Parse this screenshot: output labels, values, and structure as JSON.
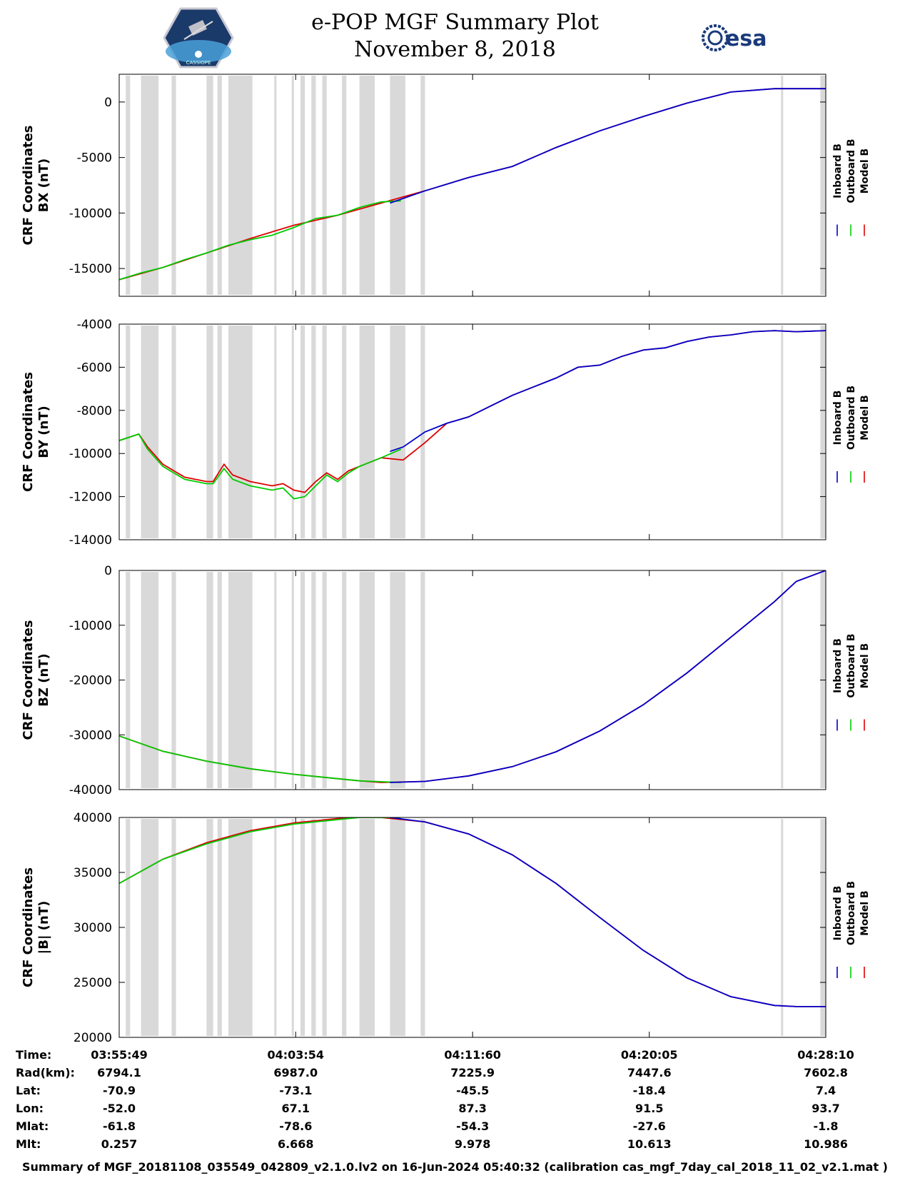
{
  "header": {
    "title_line1": "e-POP MGF Summary Plot",
    "title_line2": "November 8, 2018",
    "esa_logo_text": "esa",
    "mission_logo_text": "CASSIOPE"
  },
  "legend": {
    "items": [
      {
        "label": "Inboard B",
        "color": "#0000cc"
      },
      {
        "label": "Outboard B",
        "color": "#00cc00"
      },
      {
        "label": "Model B",
        "color": "#dd0000"
      }
    ]
  },
  "chart_data": [
    {
      "type": "line",
      "ylabel_line1": "CRF Coordinates",
      "ylabel_line2": "BX (nT)",
      "ylim": [
        -17500,
        2500
      ],
      "yticks": [
        0,
        -5000,
        -10000,
        -15000
      ],
      "x_range": [
        0,
        32.35
      ],
      "series": [
        {
          "name": "Model B",
          "x": [
            0,
            2,
            4,
            6,
            8,
            10,
            12,
            14,
            16,
            18,
            20,
            22,
            24,
            26,
            28,
            30,
            32.35
          ],
          "y": [
            -16000,
            -14900,
            -13600,
            -12300,
            -11100,
            -10200,
            -9100,
            -8000,
            -6800,
            -5800,
            -4100,
            -2600,
            -1300,
            -100,
            900,
            1200,
            1200
          ]
        },
        {
          "name": "Outboard B",
          "x": [
            0,
            1,
            2,
            3,
            4,
            5,
            6,
            7,
            8,
            9,
            10,
            11,
            12,
            12.9
          ],
          "y": [
            -16000,
            -15400,
            -14900,
            -14200,
            -13600,
            -12900,
            -12400,
            -12000,
            -11300,
            -10500,
            -10200,
            -9500,
            -9000,
            -8900
          ]
        },
        {
          "name": "Inboard B",
          "x": [
            12.4,
            14,
            16,
            18,
            20,
            22,
            24,
            26,
            28,
            30,
            32.35
          ],
          "y": [
            -9100,
            -8000,
            -6800,
            -5800,
            -4100,
            -2600,
            -1300,
            -100,
            900,
            1200,
            1200
          ]
        }
      ]
    },
    {
      "type": "line",
      "ylabel_line1": "CRF Coordinates",
      "ylabel_line2": "BY (nT)",
      "ylim": [
        -14000,
        -4000
      ],
      "yticks": [
        -4000,
        -6000,
        -8000,
        -10000,
        -12000,
        -14000
      ],
      "x_range": [
        0,
        32.35
      ],
      "series": [
        {
          "name": "Model B",
          "x": [
            0,
            0.9,
            1.3,
            2,
            3,
            4,
            4.3,
            4.8,
            5.2,
            6,
            7,
            7.5,
            8,
            8.5,
            9,
            9.5,
            10,
            10.5,
            11,
            12,
            13,
            14,
            15,
            16,
            17,
            18,
            19,
            20,
            21,
            22,
            23,
            24,
            25,
            26,
            27,
            28,
            29,
            30,
            31,
            32.35
          ],
          "y": [
            -9400,
            -9100,
            -9700,
            -10500,
            -11100,
            -11300,
            -11300,
            -10500,
            -11000,
            -11300,
            -11500,
            -11400,
            -11700,
            -11800,
            -11300,
            -10900,
            -11200,
            -10800,
            -10600,
            -10200,
            -10300,
            -9500,
            -8600,
            -8300,
            -7800,
            -7300,
            -6900,
            -6500,
            -6000,
            -5900,
            -5500,
            -5200,
            -5100,
            -4800,
            -4600,
            -4500,
            -4350,
            -4300,
            -4350,
            -4300
          ]
        },
        {
          "name": "Outboard B",
          "x": [
            0,
            0.9,
            1.3,
            2,
            3,
            4,
            4.3,
            4.8,
            5.2,
            6,
            7,
            7.5,
            8,
            8.5,
            9,
            9.5,
            10,
            10.5,
            11,
            12,
            12.9
          ],
          "y": [
            -9400,
            -9100,
            -9800,
            -10600,
            -11200,
            -11400,
            -11400,
            -10700,
            -11200,
            -11500,
            -11700,
            -11600,
            -12100,
            -12000,
            -11500,
            -11000,
            -11300,
            -10900,
            -10600,
            -10200,
            -9800
          ]
        },
        {
          "name": "Inboard B",
          "x": [
            12.4,
            13,
            14,
            15,
            16,
            17,
            18,
            19,
            20,
            21,
            22,
            23,
            24,
            25,
            26,
            27,
            28,
            29,
            30,
            31,
            32.35
          ],
          "y": [
            -9900,
            -9700,
            -9000,
            -8600,
            -8300,
            -7800,
            -7300,
            -6900,
            -6500,
            -6000,
            -5900,
            -5500,
            -5200,
            -5100,
            -4800,
            -4600,
            -4500,
            -4350,
            -4300,
            -4350,
            -4300
          ]
        }
      ]
    },
    {
      "type": "line",
      "ylabel_line1": "CRF Coordinates",
      "ylabel_line2": "BZ (nT)",
      "ylim": [
        -40000,
        0
      ],
      "yticks": [
        0,
        -10000,
        -20000,
        -30000,
        -40000
      ],
      "x_range": [
        0,
        32.35
      ],
      "series": [
        {
          "name": "Model B",
          "x": [
            0,
            2,
            4,
            6,
            8,
            10,
            11,
            12,
            14,
            16,
            18,
            20,
            22,
            24,
            26,
            28,
            30,
            31,
            32.35
          ],
          "y": [
            -30200,
            -33000,
            -34800,
            -36200,
            -37200,
            -38000,
            -38400,
            -38700,
            -38500,
            -37500,
            -35800,
            -33100,
            -29300,
            -24500,
            -18700,
            -12200,
            -5700,
            -2000,
            0
          ]
        },
        {
          "name": "Outboard B",
          "x": [
            0,
            2,
            4,
            6,
            8,
            10,
            11,
            12.9
          ],
          "y": [
            -30200,
            -33000,
            -34800,
            -36200,
            -37200,
            -38000,
            -38400,
            -38700
          ]
        },
        {
          "name": "Inboard B",
          "x": [
            12.4,
            14,
            16,
            18,
            20,
            22,
            24,
            26,
            28,
            30,
            31,
            32.35
          ],
          "y": [
            -38700,
            -38500,
            -37500,
            -35800,
            -33100,
            -29300,
            -24500,
            -18700,
            -12200,
            -5700,
            -2000,
            0
          ]
        }
      ]
    },
    {
      "type": "line",
      "ylabel_line1": "CRF Coordinates",
      "ylabel_line2": "|B| (nT)",
      "ylim": [
        20000,
        40000
      ],
      "yticks": [
        40000,
        35000,
        30000,
        25000,
        20000
      ],
      "x_range": [
        0,
        32.35
      ],
      "series": [
        {
          "name": "Model B",
          "x": [
            0,
            2,
            4,
            6,
            8,
            10,
            11,
            12,
            14,
            16,
            18,
            20,
            22,
            24,
            26,
            28,
            30,
            31,
            32.35
          ],
          "y": [
            34000,
            36200,
            37700,
            38800,
            39500,
            39900,
            40000,
            40000,
            39600,
            38500,
            36600,
            34000,
            30900,
            27900,
            25400,
            23700,
            22900,
            22800,
            22800
          ]
        },
        {
          "name": "Outboard B",
          "x": [
            0,
            2,
            4,
            6,
            8,
            10,
            11,
            12.9
          ],
          "y": [
            34000,
            36200,
            37600,
            38700,
            39400,
            39800,
            40000,
            40000
          ]
        },
        {
          "name": "Inboard B",
          "x": [
            12.4,
            14,
            16,
            18,
            20,
            22,
            24,
            26,
            28,
            30,
            31,
            32.35
          ],
          "y": [
            40000,
            39600,
            38500,
            36600,
            34000,
            30900,
            27900,
            25400,
            23700,
            22900,
            22800,
            22800
          ]
        }
      ]
    }
  ],
  "gap_bands": [
    [
      0.3,
      0.5
    ],
    [
      1.0,
      1.8
    ],
    [
      2.4,
      2.6
    ],
    [
      4.0,
      4.3
    ],
    [
      4.5,
      4.7
    ],
    [
      5.0,
      6.1
    ],
    [
      7.1,
      7.2
    ],
    [
      7.9,
      8.0
    ],
    [
      8.3,
      8.5
    ],
    [
      8.8,
      9.0
    ],
    [
      9.3,
      9.5
    ],
    [
      10.2,
      10.4
    ],
    [
      11.0,
      11.7
    ],
    [
      12.4,
      13.1
    ],
    [
      13.8,
      14.0
    ],
    [
      30.3,
      30.4
    ],
    [
      32.1,
      33.3
    ]
  ],
  "x_axis": {
    "tick_positions": [
      0,
      8.08,
      16.18,
      24.27,
      32.35
    ],
    "rows": [
      {
        "label": "Time:",
        "values": [
          "03:55:49",
          "04:03:54",
          "04:11:60",
          "04:20:05",
          "04:28:10"
        ]
      },
      {
        "label": "Rad(km):",
        "values": [
          "6794.1",
          "6987.0",
          "7225.9",
          "7447.6",
          "7602.8"
        ]
      },
      {
        "label": "Lat:",
        "values": [
          "-70.9",
          "-73.1",
          "-45.5",
          "-18.4",
          "7.4"
        ]
      },
      {
        "label": "Lon:",
        "values": [
          "-52.0",
          "67.1",
          "87.3",
          "91.5",
          "93.7"
        ]
      },
      {
        "label": "Mlat:",
        "values": [
          "-61.8",
          "-78.6",
          "-54.3",
          "-27.6",
          "-1.8"
        ]
      },
      {
        "label": "Mlt:",
        "values": [
          "0.257",
          "6.668",
          "9.978",
          "10.613",
          "10.986"
        ]
      }
    ]
  },
  "footer": {
    "text": "Summary of MGF_20181108_035549_042809_v2.1.0.lv2 on 16-Jun-2024 05:40:32 (calibration cas_mgf_7day_cal_2018_11_02_v2.1.mat )"
  }
}
